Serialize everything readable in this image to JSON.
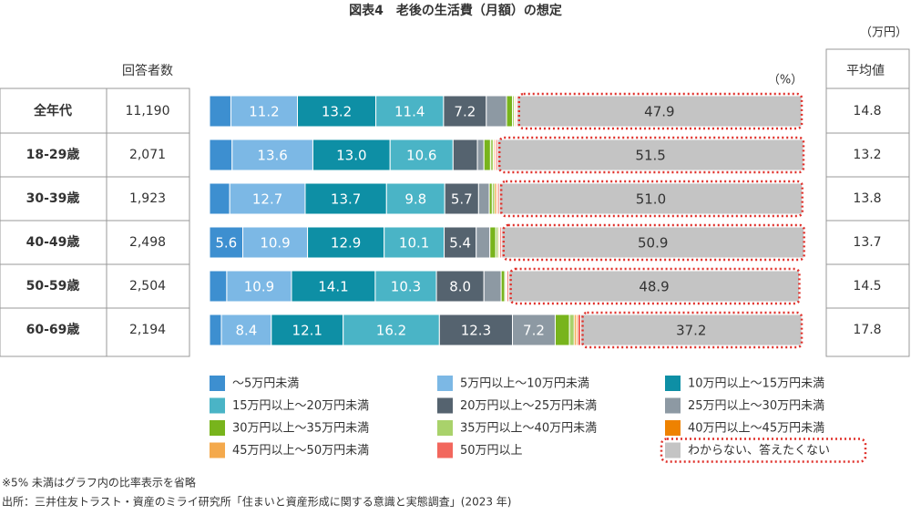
{
  "chart_data": {
    "type": "stacked-bar",
    "orientation": "horizontal",
    "title": "図表4　老後の生活費（月額）の想定",
    "unit_left": "（万円）",
    "unit_bar": "（%）",
    "respondents_header": "回答者数",
    "average_header": "平均値",
    "categories": [
      "全年代",
      "18-29歳",
      "30-39歳",
      "40-49歳",
      "50-59歳",
      "60-69歳"
    ],
    "respondents": [
      "11,190",
      "2,071",
      "1,923",
      "2,498",
      "2,504",
      "2,194"
    ],
    "averages": [
      14.8,
      13.2,
      13.8,
      13.7,
      14.5,
      17.8
    ],
    "xlim": [
      0,
      100
    ],
    "series": [
      {
        "name": "～5万円未満",
        "color": "#3d8fd0",
        "values": [
          3.6,
          3.8,
          3.4,
          5.6,
          2.9,
          2.0
        ],
        "value_labels": [
          null,
          null,
          null,
          "5.6",
          null,
          null
        ]
      },
      {
        "name": "5万円以上～10万円未満",
        "color": "#7cb8e5",
        "values": [
          11.2,
          13.6,
          12.7,
          10.9,
          10.9,
          8.4
        ],
        "value_labels": [
          "11.2",
          "13.6",
          "12.7",
          "10.9",
          "10.9",
          "8.4"
        ]
      },
      {
        "name": "10万円以上～15万円未満",
        "color": "#0e8fa5",
        "values": [
          13.2,
          13.0,
          13.7,
          12.9,
          14.1,
          12.1
        ],
        "value_labels": [
          "13.2",
          "13.0",
          "13.7",
          "12.9",
          "14.1",
          "12.1"
        ]
      },
      {
        "name": "15万円以上～20万円未満",
        "color": "#4ab4c6",
        "values": [
          11.4,
          10.6,
          9.8,
          10.1,
          10.3,
          16.2
        ],
        "value_labels": [
          "11.4",
          "10.6",
          "9.8",
          "10.1",
          "10.3",
          "16.2"
        ]
      },
      {
        "name": "20万円以上～25万円未満",
        "color": "#55636f",
        "values": [
          7.2,
          4.1,
          5.7,
          5.4,
          8.0,
          12.3
        ],
        "value_labels": [
          "7.2",
          null,
          "5.7",
          "5.4",
          "8.0",
          "12.3"
        ]
      },
      {
        "name": "25万円以上～30万円未満",
        "color": "#8d99a3",
        "values": [
          3.4,
          1.1,
          1.8,
          2.3,
          2.9,
          7.2
        ],
        "value_labels": [
          null,
          null,
          null,
          null,
          null,
          "7.2"
        ]
      },
      {
        "name": "30万円以上～35万円未満",
        "color": "#78b41c",
        "values": [
          1.0,
          1.1,
          0.5,
          1.0,
          0.6,
          2.4
        ],
        "value_labels": [
          null,
          null,
          null,
          null,
          null,
          null
        ]
      },
      {
        "name": "35万円以上～40万円未満",
        "color": "#a9d26b",
        "values": [
          0.3,
          0.5,
          0.4,
          0.4,
          0.2,
          0.8
        ],
        "value_labels": [
          null,
          null,
          null,
          null,
          null,
          null
        ]
      },
      {
        "name": "40万円以上～45万円未満",
        "color": "#ee8200",
        "values": [
          0.2,
          0.2,
          0.3,
          0.2,
          0.1,
          0.3
        ],
        "value_labels": [
          null,
          null,
          null,
          null,
          null,
          null
        ]
      },
      {
        "name": "45万円以上～50万円未満",
        "color": "#f4a94c",
        "values": [
          0.1,
          0.2,
          0.2,
          0.1,
          0.1,
          0.3
        ],
        "value_labels": [
          null,
          null,
          null,
          null,
          null,
          null
        ]
      },
      {
        "name": "50万円以上",
        "color": "#f2675d",
        "values": [
          0.2,
          0.3,
          0.3,
          0.3,
          0.3,
          0.5
        ],
        "value_labels": [
          null,
          null,
          null,
          null,
          null,
          null
        ]
      },
      {
        "name": "わからない、答えたくない",
        "color": "#c4c4c4",
        "values": [
          47.9,
          51.5,
          51.0,
          50.9,
          48.9,
          37.2
        ],
        "value_labels": [
          "47.9",
          "51.5",
          "51.0",
          "50.9",
          "48.9",
          "37.2"
        ],
        "highlight": true
      }
    ],
    "notes": [
      "※5% 未満はグラフ内の比率表示を省略",
      "出所：三井住友トラスト・資産のミライ研究所「住まいと資産形成に関する意識と実態調査」(2023 年)"
    ]
  }
}
